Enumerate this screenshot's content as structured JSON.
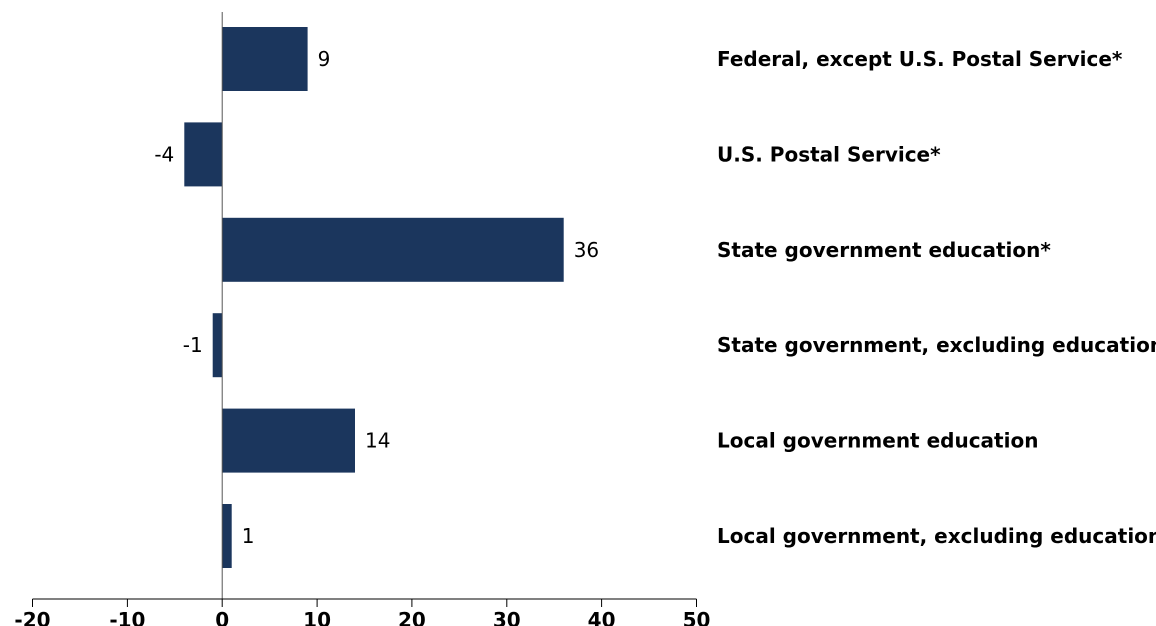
{
  "chart_data": {
    "type": "bar",
    "orientation": "horizontal",
    "title": "",
    "xlabel": "",
    "ylabel": "",
    "categories": [
      "Federal, except U.S. Postal Service*",
      "U.S. Postal Service*",
      "State government education*",
      "State government, excluding education",
      "Local government education",
      "Local government, excluding education"
    ],
    "values": [
      9,
      -4,
      36,
      -1,
      14,
      1
    ],
    "data_labels": [
      "9",
      "-4",
      "36",
      "-1",
      "14",
      "1"
    ],
    "xlim": [
      -20,
      50
    ],
    "xticks": [
      -20,
      -10,
      0,
      10,
      20,
      30,
      40,
      50
    ],
    "xtick_labels": [
      "-20",
      "-10",
      "0",
      "10",
      "20",
      "30",
      "40",
      "50"
    ],
    "grid": false,
    "legend": "none",
    "category_label_position": "right",
    "colors": {
      "bar": "#1b365d",
      "axis": "#000000",
      "text": "#000000"
    }
  }
}
